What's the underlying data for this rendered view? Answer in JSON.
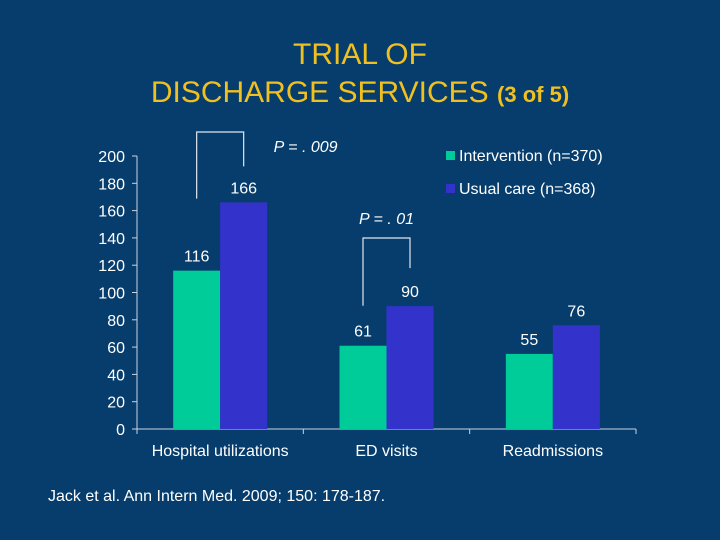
{
  "slide": {
    "title_line1": "TRIAL OF",
    "title_line2": "DISCHARGE SERVICES",
    "title_part": "(3 of 5)",
    "citation": "Jack et al. Ann Intern Med. 2009; 150: 178-187."
  },
  "colors": {
    "background": "#063d6c",
    "title": "#f0c020",
    "intervention": "#00cc99",
    "usual_care": "#3333cc"
  },
  "chart_data": {
    "type": "bar",
    "title": "",
    "xlabel": "",
    "ylabel": "",
    "ylim": [
      0,
      200
    ],
    "yticks": [
      0,
      20,
      40,
      60,
      80,
      100,
      120,
      140,
      160,
      180,
      200
    ],
    "grid": false,
    "legend_position": "top-right",
    "categories": [
      "Hospital utilizations",
      "ED visits",
      "Readmissions"
    ],
    "series": [
      {
        "name": "Intervention (n=370)",
        "values": [
          116,
          61,
          55
        ]
      },
      {
        "name": "Usual care (n=368)",
        "values": [
          166,
          90,
          76
        ]
      }
    ],
    "annotations": [
      {
        "label": "P = . 009",
        "category_index": 0
      },
      {
        "label": "P = . 01",
        "category_index": 1
      }
    ]
  }
}
